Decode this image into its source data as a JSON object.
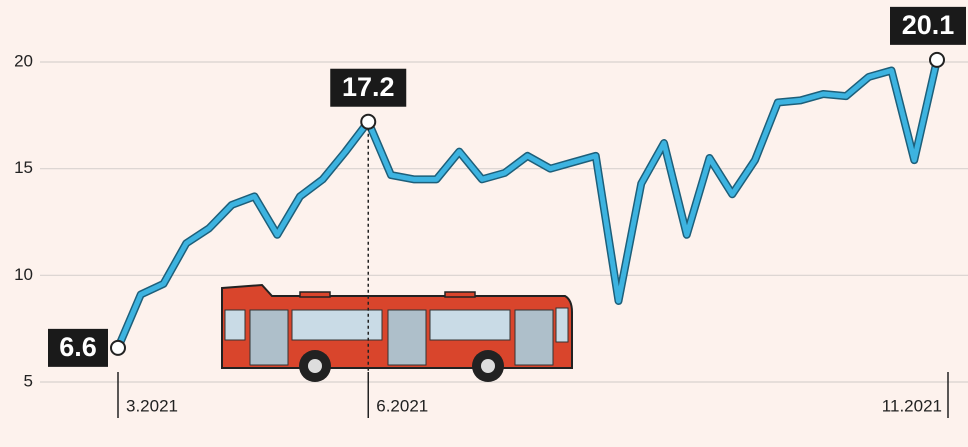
{
  "chart_data": {
    "type": "line",
    "categories": [
      "3.2021",
      null,
      null,
      null,
      null,
      null,
      null,
      null,
      null,
      null,
      null,
      "6.2021",
      null,
      null,
      null,
      null,
      null,
      null,
      null,
      null,
      null,
      null,
      null,
      null,
      null,
      null,
      null,
      null,
      null,
      null,
      null,
      null,
      null,
      null,
      null,
      null,
      "11.2021"
    ],
    "series": [
      {
        "color": "#3db3e0",
        "values": [
          6.6,
          9.1,
          9.6,
          11.5,
          12.2,
          13.3,
          13.7,
          11.9,
          13.7,
          14.5,
          15.8,
          17.2,
          14.7,
          14.5,
          14.5,
          15.8,
          14.5,
          14.8,
          15.6,
          15.0,
          15.3,
          15.6,
          8.8,
          14.3,
          16.2,
          11.9,
          15.5,
          13.8,
          15.4,
          18.1,
          18.2,
          18.5,
          18.4,
          19.3,
          19.6,
          15.4,
          20.1
        ],
        "value_labels": [
          "6.6",
          null,
          null,
          null,
          null,
          null,
          null,
          null,
          null,
          null,
          null,
          "17.2",
          null,
          null,
          null,
          null,
          null,
          null,
          null,
          null,
          null,
          null,
          null,
          null,
          null,
          null,
          null,
          null,
          null,
          null,
          null,
          null,
          null,
          null,
          null,
          null,
          "20.1"
        ]
      }
    ],
    "ylim": [
      5,
      20
    ],
    "yticks": [
      5,
      10,
      15,
      20
    ],
    "grid": true
  }
}
